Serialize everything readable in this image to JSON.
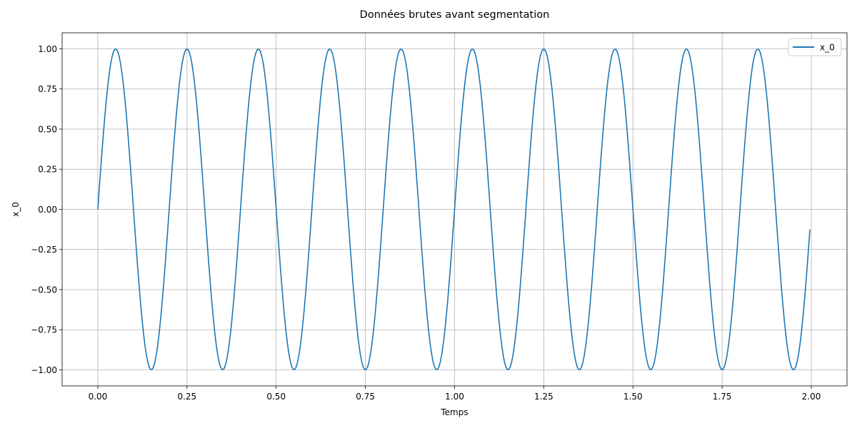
{
  "chart_data": {
    "type": "line",
    "title": "Données brutes avant segmentation",
    "xlabel": "Temps",
    "ylabel": "x_0",
    "xlim": [
      -0.1,
      2.1
    ],
    "ylim": [
      -1.1,
      1.1
    ],
    "xticks": [
      0.0,
      0.25,
      0.5,
      0.75,
      1.0,
      1.25,
      1.5,
      1.75,
      2.0
    ],
    "xtick_labels": [
      "0.00",
      "0.25",
      "0.50",
      "0.75",
      "1.00",
      "1.25",
      "1.50",
      "1.75",
      "2.00"
    ],
    "yticks": [
      -1.0,
      -0.75,
      -0.5,
      -0.25,
      0.0,
      0.25,
      0.5,
      0.75,
      1.0
    ],
    "ytick_labels": [
      "−1.00",
      "−0.75",
      "−0.50",
      "−0.25",
      "0.00",
      "0.25",
      "0.50",
      "0.75",
      "1.00"
    ],
    "grid": true,
    "legend_position": "top-right",
    "function": "sin(2*pi*5*t)",
    "x_start": 0.0,
    "x_end": 1.996,
    "x_step": 0.004,
    "series": [
      {
        "name": "x_0",
        "color": "#1f77b4",
        "frequency_hz": 5,
        "amplitude": 1.0
      }
    ]
  }
}
